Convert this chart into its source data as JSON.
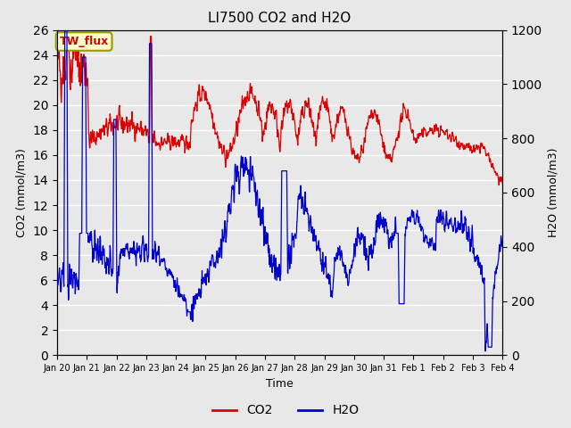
{
  "title": "LI7500 CO2 and H2O",
  "xlabel": "Time",
  "ylabel_left": "CO2 (mmol/m3)",
  "ylabel_right": "H2O (mmol/m3)",
  "legend_label_co2": "CO2",
  "legend_label_h2o": "H2O",
  "annotation_text": "TW_flux",
  "annotation_box_color": "#ffffcc",
  "annotation_border_color": "#999900",
  "co2_color": "#dd0000",
  "h2o_color": "#0000cc",
  "ylim_left": [
    0,
    26
  ],
  "ylim_right": [
    0,
    1200
  ],
  "plot_bg_color": "#e8e8e8",
  "grid_color": "white",
  "tick_labels": [
    "Jan 20",
    "Jan 21",
    "Jan 22",
    "Jan 23",
    "Jan 24",
    "Jan 25",
    "Jan 26",
    "Jan 27",
    "Jan 28",
    "Jan 29",
    "Jan 30",
    "Jan 31",
    "Feb 1",
    "Feb 2",
    "Feb 3",
    "Feb 4"
  ],
  "n_points": 1500
}
